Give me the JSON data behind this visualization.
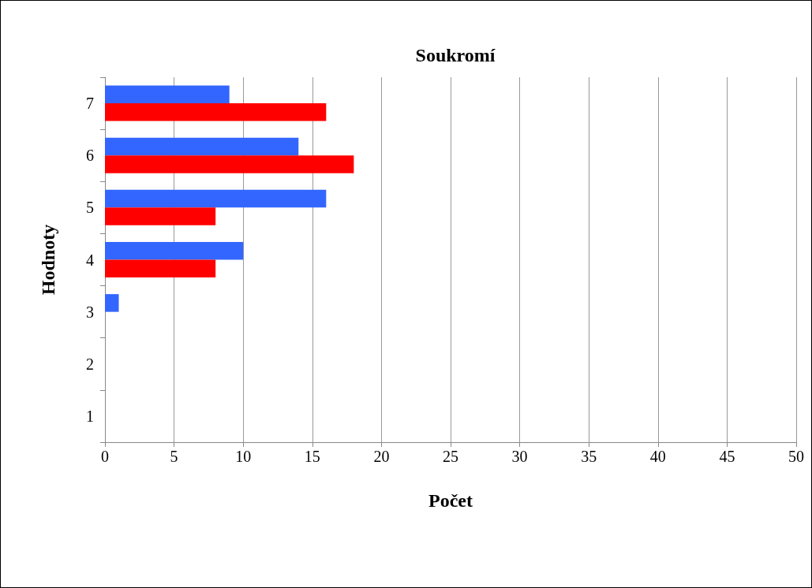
{
  "chart_data": {
    "type": "bar",
    "orientation": "horizontal",
    "title": "Soukromí",
    "xlabel": "Počet",
    "ylabel": "Hodnoty",
    "categories": [
      "7",
      "6",
      "5",
      "4",
      "3",
      "2",
      "1"
    ],
    "series": [
      {
        "color": "#3366ff",
        "values": [
          9,
          14,
          16,
          10,
          1,
          0,
          0
        ]
      },
      {
        "color": "#ff0000",
        "values": [
          16,
          18,
          8,
          8,
          0,
          0,
          0
        ]
      }
    ],
    "xlim": [
      0,
      50
    ],
    "xticks": [
      0,
      5,
      10,
      15,
      20,
      25,
      30,
      35,
      40,
      45,
      50
    ],
    "grid": "x"
  }
}
